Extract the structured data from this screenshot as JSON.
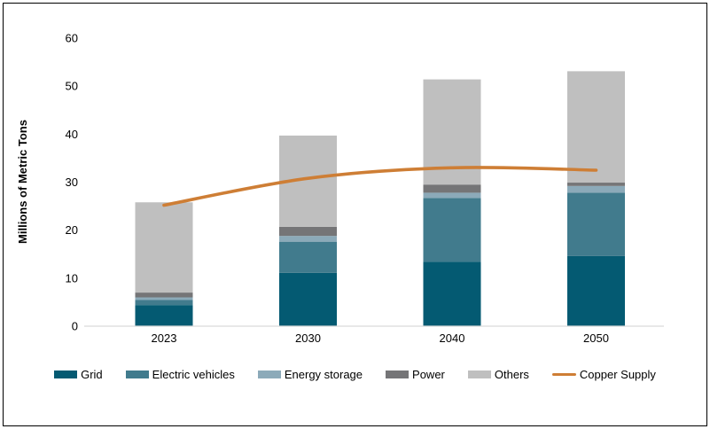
{
  "chart_data": {
    "type": "bar",
    "stacked": true,
    "title": "",
    "categories": [
      "2023",
      "2030",
      "2040",
      "2050"
    ],
    "series": [
      {
        "name": "Grid",
        "color": "#045A72",
        "values": [
          4.4,
          11.1,
          13.4,
          14.6
        ]
      },
      {
        "name": "Electric vehicles",
        "color": "#417B8D",
        "values": [
          1.1,
          6.5,
          13.3,
          13.2
        ]
      },
      {
        "name": "Energy storage",
        "color": "#8CAAB9",
        "values": [
          0.5,
          1.2,
          1.1,
          1.4
        ]
      },
      {
        "name": "Power",
        "color": "#757577",
        "values": [
          1.0,
          1.9,
          1.7,
          0.7
        ]
      },
      {
        "name": "Others",
        "color": "#BFBFBF",
        "values": [
          18.8,
          19.0,
          21.9,
          23.2
        ]
      }
    ],
    "line_series": {
      "name": "Copper Supply",
      "color": "#CE7E35",
      "values": [
        25.2,
        30.8,
        33.0,
        32.5
      ]
    },
    "xlabel": "",
    "ylabel": "Millions of Metric Tons",
    "ylim": [
      0,
      60
    ],
    "yticks": [
      0,
      10,
      20,
      30,
      40,
      50,
      60
    ],
    "grid": false,
    "legend_position": "bottom",
    "axis_line_color": "#D9D9D9"
  }
}
